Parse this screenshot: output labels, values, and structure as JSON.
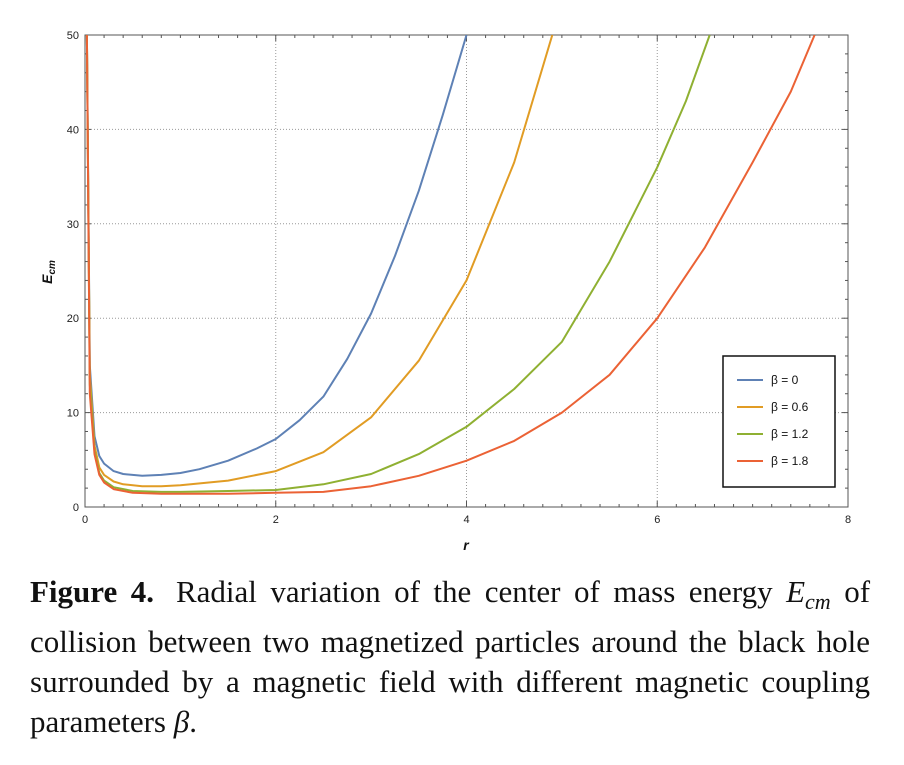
{
  "figure": {
    "caption_label": "Figure 4.",
    "caption_part1": "Radial variation of the center of mass energy",
    "caption_symbol": "E",
    "caption_symbol_sub": "cm",
    "caption_part2": "of collision between two magnetized particles around the black hole surrounded by a magnetic field with different magnetic coupling parameters",
    "caption_beta": "β",
    "caption_end": "."
  },
  "chart_data": {
    "type": "line",
    "xlabel": "r",
    "ylabel": "E",
    "ylabel_sub": "cm",
    "xlim": [
      0,
      8
    ],
    "ylim": [
      0,
      50
    ],
    "xticks": [
      "0",
      "2",
      "4",
      "6",
      "8"
    ],
    "yticks": [
      "0",
      "10",
      "20",
      "30",
      "40",
      "50"
    ],
    "grid": true,
    "legend_position": "right",
    "series": [
      {
        "name": "β = 0",
        "color": "#5e81b5",
        "x": [
          0.02,
          0.05,
          0.1,
          0.15,
          0.2,
          0.3,
          0.4,
          0.6,
          0.8,
          1.0,
          1.2,
          1.5,
          1.8,
          2.0,
          2.25,
          2.5,
          2.75,
          3.0,
          3.25,
          3.5,
          3.75,
          4.0
        ],
        "y": [
          50,
          15,
          7.5,
          5.4,
          4.6,
          3.8,
          3.5,
          3.3,
          3.4,
          3.6,
          4.0,
          4.9,
          6.2,
          7.2,
          9.2,
          11.7,
          15.7,
          20.5,
          26.6,
          33.5,
          41.5,
          50.0
        ]
      },
      {
        "name": "β = 0.6",
        "color": "#e19c24",
        "x": [
          0.02,
          0.05,
          0.1,
          0.15,
          0.2,
          0.3,
          0.4,
          0.6,
          0.8,
          1.0,
          1.5,
          2.0,
          2.5,
          3.0,
          3.5,
          4.0,
          4.5,
          4.9
        ],
        "y": [
          50,
          14,
          6.5,
          4.2,
          3.4,
          2.7,
          2.4,
          2.2,
          2.2,
          2.3,
          2.8,
          3.8,
          5.8,
          9.5,
          15.5,
          24.0,
          36.5,
          50.0
        ]
      },
      {
        "name": "β = 1.2",
        "color": "#8fb032",
        "x": [
          0.02,
          0.05,
          0.1,
          0.15,
          0.2,
          0.3,
          0.5,
          0.8,
          1.0,
          1.5,
          2.0,
          2.5,
          3.0,
          3.5,
          4.0,
          4.5,
          5.0,
          5.5,
          6.0,
          6.3,
          6.55
        ],
        "y": [
          50,
          13,
          6.0,
          3.6,
          2.8,
          2.1,
          1.7,
          1.6,
          1.6,
          1.7,
          1.8,
          2.4,
          3.5,
          5.6,
          8.5,
          12.5,
          17.5,
          26.0,
          36.0,
          43.0,
          50.0
        ]
      },
      {
        "name": "β = 1.8",
        "color": "#eb6235",
        "x": [
          0.02,
          0.05,
          0.1,
          0.15,
          0.2,
          0.3,
          0.5,
          0.8,
          1.0,
          1.5,
          2.0,
          2.5,
          3.0,
          3.5,
          4.0,
          4.5,
          5.0,
          5.5,
          6.0,
          6.5,
          7.0,
          7.4,
          7.65
        ],
        "y": [
          50,
          12,
          5.6,
          3.4,
          2.6,
          1.9,
          1.5,
          1.4,
          1.4,
          1.4,
          1.5,
          1.6,
          2.2,
          3.3,
          4.9,
          7.0,
          10.0,
          14.0,
          20.0,
          27.5,
          36.5,
          44.0,
          50.0
        ]
      }
    ]
  }
}
